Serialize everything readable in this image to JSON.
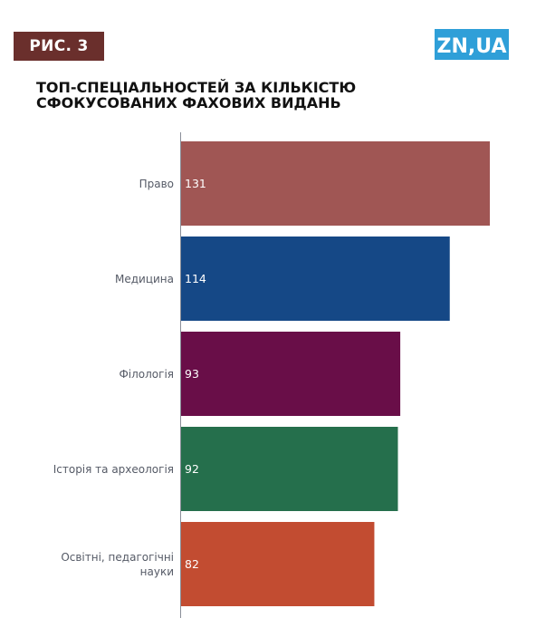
{
  "header": {
    "figure_label": "РИС. 3",
    "logo_text": "ZN,UA",
    "title_lines": [
      "ТОП-СПЕЦІАЛЬНОСТЕЙ ЗА КІЛЬКІСТЮ",
      "СФОКУСОВАНИХ ФАХОВИХ ВИДАНЬ"
    ]
  },
  "colors": {
    "figure_badge": "#6a2f2c",
    "logo": "#2f9fd8",
    "axis": "#8a8f99"
  },
  "chart_data": {
    "type": "bar",
    "orientation": "horizontal",
    "title": "ТОП-СПЕЦІАЛЬНОСТЕЙ ЗА КІЛЬКІСТЮ СФОКУСОВАНИХ ФАХОВИХ ВИДАНЬ",
    "categories": [
      [
        "Право"
      ],
      [
        "Медицина"
      ],
      [
        "Філологія"
      ],
      [
        "Історія та археологія"
      ],
      [
        "Освітні, педагогічні",
        "науки"
      ]
    ],
    "values": [
      131,
      114,
      93,
      92,
      82
    ],
    "bar_colors": [
      "#a05654",
      "#154886",
      "#690e48",
      "#256f4c",
      "#c24c31"
    ],
    "xlim": [
      0,
      131
    ],
    "grid": false,
    "data_labels": true,
    "legend": "none"
  }
}
